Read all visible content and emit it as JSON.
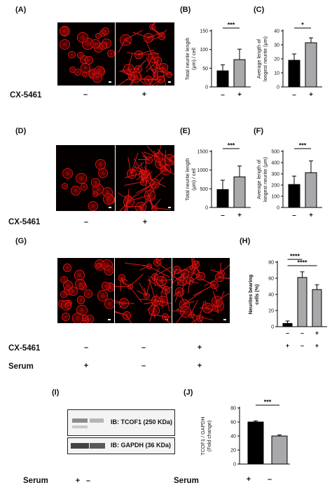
{
  "panels": {
    "A": {
      "label": "(A)"
    },
    "B": {
      "label": "(B)"
    },
    "C": {
      "label": "(C)"
    },
    "D": {
      "label": "(D)"
    },
    "E": {
      "label": "(E)"
    },
    "F": {
      "label": "(F)"
    },
    "G": {
      "label": "(G)"
    },
    "H": {
      "label": "(H)"
    },
    "I": {
      "label": "(I)"
    },
    "J": {
      "label": "(J)"
    }
  },
  "treatment_rows": {
    "row1": {
      "label": "CX-5461",
      "signs": [
        "–",
        "+"
      ]
    },
    "row2": {
      "label": "CX-5461",
      "signs": [
        "–",
        "+"
      ]
    },
    "row3_cx": {
      "label": "CX-5461",
      "signs": [
        "–",
        "–",
        "+"
      ]
    },
    "row3_serum": {
      "label": "Serum",
      "signs": [
        "+",
        "–",
        "+"
      ]
    },
    "row4_serum_blot": {
      "label": "Serum",
      "signs": [
        "+",
        "–"
      ]
    },
    "row4_serum_chart": {
      "label": "Serum",
      "signs": [
        "+",
        "–"
      ]
    }
  },
  "blot": {
    "band1_label": "IB: TCOF1 (250 KDa)",
    "band2_label": "IB: GAPDH (36 KDa)"
  },
  "colors": {
    "control_bar": "#000000",
    "treated_bar": "#a9a9ab",
    "fluorescence": "#e01010",
    "background": "#050000"
  },
  "chart_data": [
    {
      "id": "B",
      "type": "bar",
      "ylabel": "Total neurite length (μm) / cell",
      "categories": [
        "–",
        "+"
      ],
      "values": [
        43,
        73
      ],
      "errors": [
        16,
        28
      ],
      "ylim": [
        0,
        150
      ],
      "yticks": [
        0,
        50,
        100,
        150
      ],
      "significance": [
        {
          "pair": [
            0,
            1
          ],
          "text": "***"
        }
      ]
    },
    {
      "id": "C",
      "type": "bar",
      "ylabel": "Average length of longest neurite (μm)",
      "categories": [
        "–",
        "+"
      ],
      "values": [
        19,
        31.5
      ],
      "errors": [
        4.5,
        3.5
      ],
      "ylim": [
        0,
        40
      ],
      "yticks": [
        0,
        10,
        20,
        30,
        40
      ],
      "significance": [
        {
          "pair": [
            0,
            1
          ],
          "text": "*"
        }
      ]
    },
    {
      "id": "E",
      "type": "bar",
      "ylabel": "Total neurite length (μm) / cell",
      "categories": [
        "–",
        "+"
      ],
      "values": [
        480,
        820
      ],
      "errors": [
        250,
        290
      ],
      "ylim": [
        0,
        1500
      ],
      "yticks": [
        0,
        500,
        1000,
        1500
      ],
      "significance": [
        {
          "pair": [
            0,
            1
          ],
          "text": "***"
        }
      ]
    },
    {
      "id": "F",
      "type": "bar",
      "ylabel": "Average length of longest neurite (μm)",
      "categories": [
        "–",
        "+"
      ],
      "values": [
        205,
        310
      ],
      "errors": [
        75,
        105
      ],
      "ylim": [
        0,
        500
      ],
      "yticks": [
        0,
        100,
        200,
        300,
        400,
        500
      ],
      "significance": [
        {
          "pair": [
            0,
            1
          ],
          "text": "***"
        }
      ]
    },
    {
      "id": "H",
      "type": "bar",
      "ylabel": "Neurites bearing cells (%)",
      "categories": [
        "+/–",
        "–/–",
        "+/+"
      ],
      "values": [
        4,
        61,
        46
      ],
      "errors": [
        3,
        7,
        6
      ],
      "ylim": [
        0,
        80
      ],
      "yticks": [
        0,
        20,
        40,
        60,
        80
      ],
      "significance": [
        {
          "pair": [
            0,
            1
          ],
          "text": "****"
        },
        {
          "pair": [
            0,
            2
          ],
          "text": "****"
        }
      ]
    },
    {
      "id": "J",
      "type": "bar",
      "ylabel": "TCOF1 / GAPDH (Fold change)",
      "categories": [
        "+",
        "–"
      ],
      "values": [
        60,
        40
      ],
      "errors": [
        1.5,
        1.5
      ],
      "ylim": [
        0,
        80
      ],
      "yticks": [
        0,
        20,
        40,
        60,
        80
      ],
      "significance": [
        {
          "pair": [
            0,
            1
          ],
          "text": "***"
        }
      ]
    }
  ]
}
